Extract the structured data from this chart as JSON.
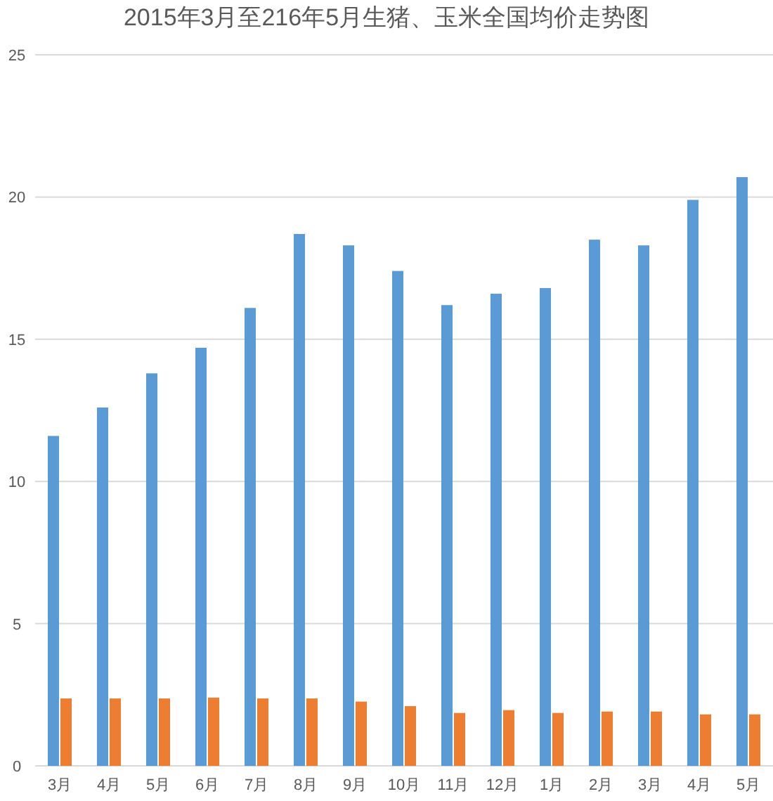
{
  "chart_data": {
    "type": "bar",
    "title": "2015年3月至216年5月生猪、玉米全国均价走势图",
    "categories": [
      "3月",
      "4月",
      "5月",
      "6月",
      "7月",
      "8月",
      "9月",
      "10月",
      "11月",
      "12月",
      "1月",
      "2月",
      "3月",
      "4月",
      "5月"
    ],
    "series": [
      {
        "color": "#5b9bd5",
        "values": [
          11.6,
          12.6,
          13.8,
          14.7,
          16.1,
          18.7,
          18.3,
          17.4,
          16.2,
          16.6,
          16.8,
          18.5,
          18.3,
          19.9,
          20.7
        ]
      },
      {
        "color": "#ed7d31",
        "values": [
          2.37,
          2.37,
          2.37,
          2.4,
          2.37,
          2.37,
          2.26,
          2.1,
          1.86,
          1.96,
          1.86,
          1.91,
          1.91,
          1.81,
          1.81
        ]
      }
    ],
    "ylim": [
      0,
      25
    ],
    "yticks": [
      0,
      5,
      10,
      15,
      20,
      25
    ],
    "grid": "y"
  }
}
